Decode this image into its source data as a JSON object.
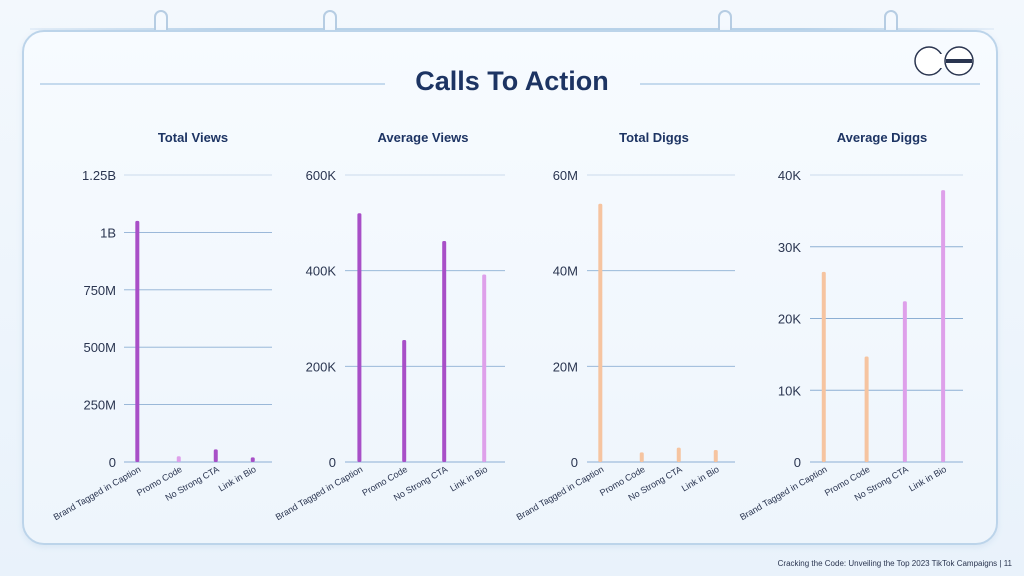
{
  "page": {
    "title": "Calls To Action",
    "footer": "Cracking the Code: Unveiling the Top 2023 TikTok Campaigns | 11"
  },
  "colors": {
    "purple": "#a84fc7",
    "pink": "#dea0ea",
    "peach": "#f6c4a0",
    "title": "#1d3463",
    "gridline": "#6c97c6"
  },
  "chart_data": [
    {
      "type": "bar",
      "title": "Total Views",
      "categories": [
        "Brand Tagged in Caption",
        "Promo Code",
        "No Strong CTA",
        "Link in Bio"
      ],
      "values": [
        1050000000,
        25000000,
        55000000,
        20000000
      ],
      "ylim": [
        0,
        1250000000
      ],
      "yticks": [
        0,
        250000000,
        500000000,
        750000000,
        1000000000,
        1250000000
      ],
      "ytick_labels": [
        "0",
        "250M",
        "500M",
        "750M",
        "1B",
        "1.25B"
      ],
      "bar_colors": [
        "purple",
        "pink",
        "purple",
        "purple"
      ],
      "grid": true
    },
    {
      "type": "bar",
      "title": "Average Views",
      "categories": [
        "Brand Tagged in Caption",
        "Promo Code",
        "No Strong CTA",
        "Link in Bio"
      ],
      "values": [
        520000,
        255000,
        462000,
        392000
      ],
      "ylim": [
        0,
        600000
      ],
      "yticks": [
        0,
        200000,
        400000,
        600000
      ],
      "ytick_labels": [
        "0",
        "200K",
        "400K",
        "600K"
      ],
      "bar_colors": [
        "purple",
        "purple",
        "purple",
        "pink"
      ],
      "grid": true
    },
    {
      "type": "bar",
      "title": "Total Diggs",
      "categories": [
        "Brand Tagged in Caption",
        "Promo Code",
        "No Strong CTA",
        "Link in Bio"
      ],
      "values": [
        54000000,
        2000000,
        3000000,
        2500000
      ],
      "ylim": [
        0,
        60000000
      ],
      "yticks": [
        0,
        20000000,
        40000000,
        60000000
      ],
      "ytick_labels": [
        "0",
        "20M",
        "40M",
        "60M"
      ],
      "bar_colors": [
        "peach",
        "peach",
        "peach",
        "peach"
      ],
      "grid": true
    },
    {
      "type": "bar",
      "title": "Average Diggs",
      "categories": [
        "Brand Tagged in Caption",
        "Promo Code",
        "No Strong CTA",
        "Link in Bio"
      ],
      "values": [
        26500,
        14700,
        22400,
        37900
      ],
      "ylim": [
        0,
        40000
      ],
      "yticks": [
        0,
        10000,
        20000,
        30000,
        40000
      ],
      "ytick_labels": [
        "0",
        "10K",
        "20K",
        "30K",
        "40K"
      ],
      "bar_colors": [
        "peach",
        "peach",
        "pink",
        "pink"
      ],
      "grid": true
    }
  ]
}
